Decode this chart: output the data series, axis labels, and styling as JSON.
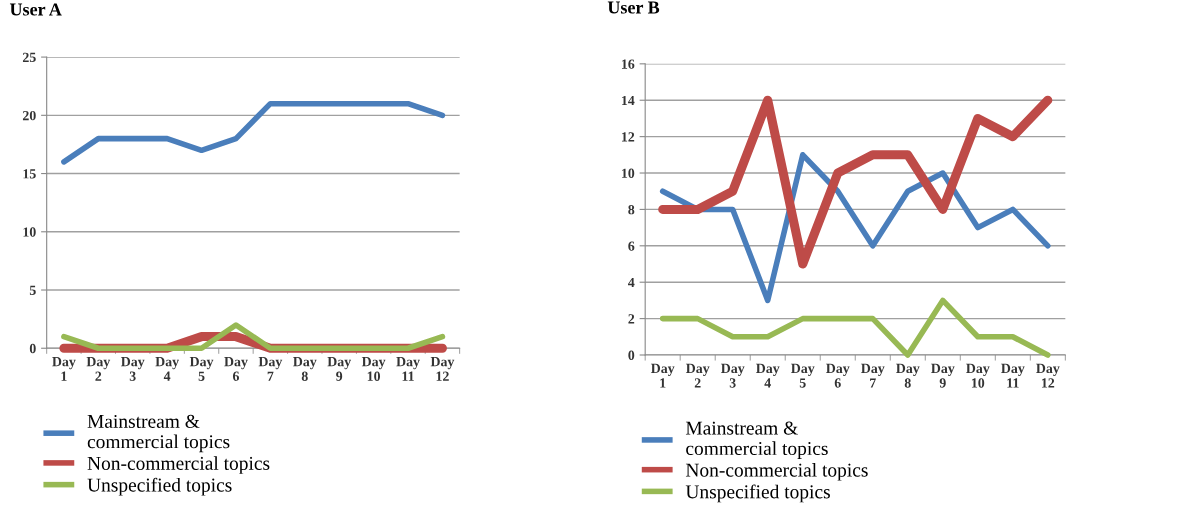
{
  "chart_data": [
    {
      "type": "line",
      "title": "User A",
      "categories": [
        "Day\n1",
        "Day\n2",
        "Day\n3",
        "Day\n4",
        "Day\n5",
        "Day\n6",
        "Day\n7",
        "Day\n8",
        "Day\n9",
        "Day\n10",
        "Day\n11",
        "Day\n12"
      ],
      "series": [
        {
          "name": "Mainstream &\ncommercial topics",
          "color": "#4a7ebb",
          "values": [
            16,
            18,
            18,
            18,
            17,
            18,
            21,
            21,
            21,
            21,
            21,
            20
          ]
        },
        {
          "name": "Non-commercial topics",
          "color": "#be4b48",
          "values": [
            0,
            0,
            0,
            0,
            1,
            1,
            0,
            0,
            0,
            0,
            0,
            0
          ]
        },
        {
          "name": "Unspecified topics",
          "color": "#98b954",
          "values": [
            1,
            0,
            0,
            0,
            0,
            2,
            0,
            0,
            0,
            0,
            0,
            1
          ]
        }
      ],
      "ylim": [
        0,
        25
      ],
      "yticks": [
        0,
        5,
        10,
        15,
        20,
        25
      ],
      "grid": "y",
      "legend": "bottom",
      "marker": "none",
      "line_style": "solid"
    },
    {
      "type": "line",
      "title": "User B",
      "categories": [
        "Day\n1",
        "Day\n2",
        "Day\n3",
        "Day\n4",
        "Day\n5",
        "Day\n6",
        "Day\n7",
        "Day\n8",
        "Day\n9",
        "Day\n10",
        "Day\n11",
        "Day\n12"
      ],
      "series": [
        {
          "name": "Mainstream &\ncommercial topics",
          "color": "#4a7ebb",
          "values": [
            9,
            8,
            8,
            3,
            11,
            9,
            6,
            9,
            10,
            7,
            8,
            6
          ]
        },
        {
          "name": "Non-commercial topics",
          "color": "#be4b48",
          "values": [
            8,
            8,
            9,
            14,
            5,
            10,
            11,
            11,
            8,
            13,
            12,
            14
          ]
        },
        {
          "name": "Unspecified topics",
          "color": "#98b954",
          "values": [
            2,
            2,
            1,
            1,
            2,
            2,
            2,
            0,
            3,
            1,
            1,
            0
          ]
        }
      ],
      "ylim": [
        0,
        16
      ],
      "yticks": [
        0,
        2,
        4,
        6,
        8,
        10,
        12,
        14,
        16
      ],
      "grid": "y",
      "legend": "bottom",
      "marker": "none",
      "line_style": "solid"
    }
  ]
}
